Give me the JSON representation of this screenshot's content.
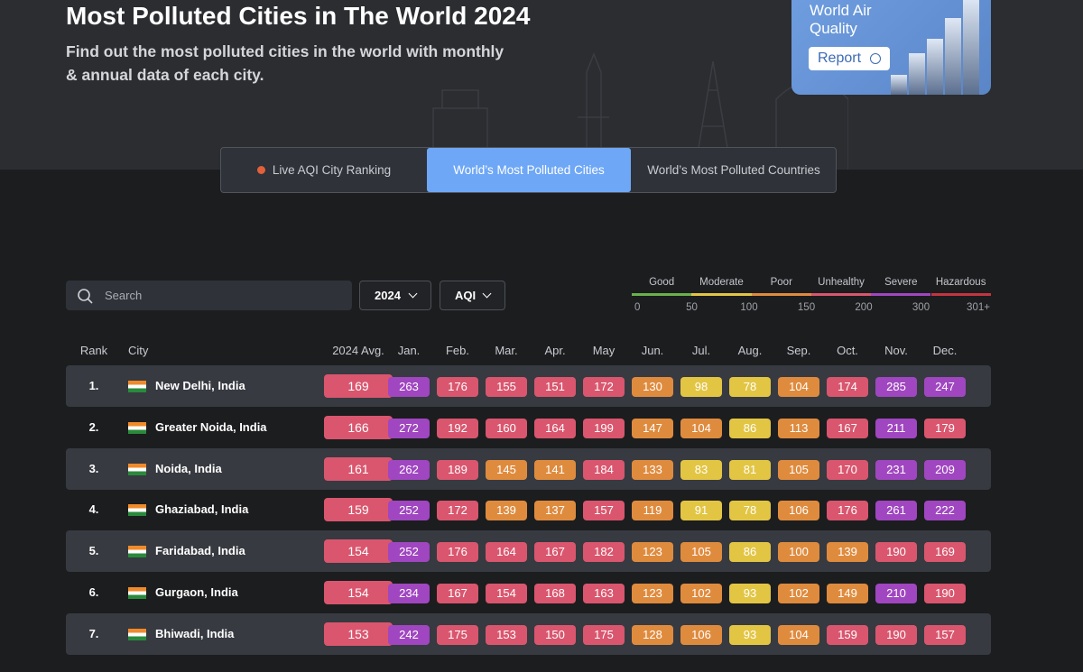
{
  "header": {
    "title": "Most Polluted Cities in The World 2024",
    "subtitle": "Find out the most polluted cities in the world with monthly & annual data of each city."
  },
  "promo": {
    "title": "World Air Quality",
    "button": "Report"
  },
  "tabs": [
    "Live AQI City Ranking",
    "World’s Most Polluted Cities",
    "World’s Most Polluted Countries"
  ],
  "search": {
    "placeholder": "Search"
  },
  "filters": [
    "2024",
    "AQI"
  ],
  "legend": {
    "levels": [
      "Good",
      "Moderate",
      "Poor",
      "Unhealthy",
      "Severe",
      "Hazardous"
    ],
    "colors": [
      "#6ab04c",
      "#e3c544",
      "#df8b3e",
      "#d9566e",
      "#a046c0",
      "#c2353f"
    ],
    "ticks": [
      0,
      50,
      100,
      150,
      200,
      300,
      {
        "value": 301,
        "label": "301+"
      }
    ]
  },
  "table": {
    "columns": [
      "Rank",
      "City",
      "2024 Avg.",
      "Jan.",
      "Feb.",
      "Mar.",
      "Apr.",
      "May",
      "Jun.",
      "Jul.",
      "Aug.",
      "Sep.",
      "Oct.",
      "Nov.",
      "Dec."
    ],
    "rows": [
      [
        "1.",
        "New Delhi, India",
        169,
        263,
        176,
        155,
        151,
        172,
        130,
        98,
        78,
        104,
        174,
        285,
        247
      ],
      [
        "2.",
        "Greater Noida, India",
        166,
        272,
        192,
        160,
        164,
        199,
        147,
        104,
        86,
        113,
        167,
        211,
        179
      ],
      [
        "3.",
        "Noida, India",
        161,
        262,
        189,
        145,
        141,
        184,
        133,
        83,
        81,
        105,
        170,
        231,
        209
      ],
      [
        "4.",
        "Ghaziabad, India",
        159,
        252,
        172,
        139,
        137,
        157,
        119,
        91,
        78,
        106,
        176,
        261,
        222
      ],
      [
        "5.",
        "Faridabad, India",
        154,
        252,
        176,
        164,
        167,
        182,
        123,
        105,
        86,
        100,
        139,
        190,
        169
      ],
      [
        "6.",
        "Gurgaon, India",
        154,
        234,
        167,
        154,
        168,
        163,
        123,
        102,
        93,
        102,
        149,
        210,
        190
      ],
      [
        "7.",
        "Bhiwadi, India",
        153,
        242,
        175,
        153,
        150,
        175,
        128,
        106,
        93,
        104,
        159,
        190,
        157
      ]
    ]
  }
}
